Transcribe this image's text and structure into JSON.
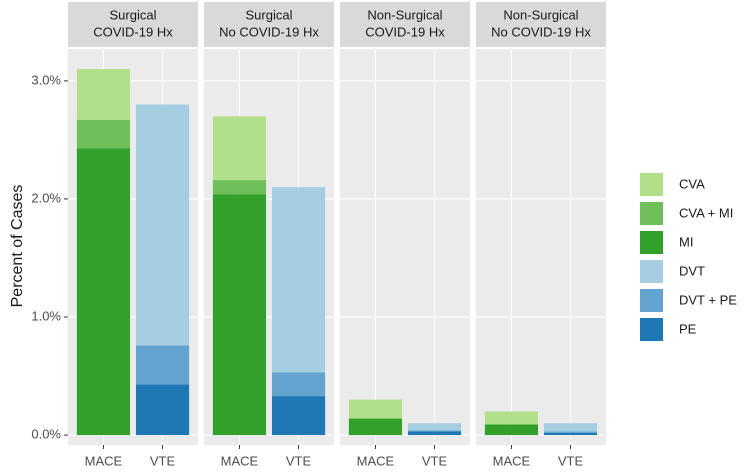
{
  "chart_data": {
    "type": "bar",
    "stacked": true,
    "y_label": "Percent of Cases",
    "facets": [
      {
        "title": [
          "Surgical",
          "COVID-19 Hx"
        ]
      },
      {
        "title": [
          "Surgical",
          "No COVID-19 Hx"
        ]
      },
      {
        "title": [
          "Non-Surgical",
          "COVID-19 Hx"
        ]
      },
      {
        "title": [
          "Non-Surgical",
          "No COVID-19 Hx"
        ]
      }
    ],
    "categories": [
      "MACE",
      "VTE"
    ],
    "series": [
      {
        "name": "CVA",
        "color": "#b2df8a",
        "values": [
          [
            0.43,
            null
          ],
          [
            0.54,
            null
          ],
          [
            0.16,
            null
          ],
          [
            0.11,
            null
          ]
        ]
      },
      {
        "name": "CVA + MI",
        "color": "#6fbf5a",
        "values": [
          [
            0.24,
            null
          ],
          [
            0.12,
            null
          ],
          [
            0.0,
            null
          ],
          [
            0.0,
            null
          ]
        ]
      },
      {
        "name": "MI",
        "color": "#33a02c",
        "values": [
          [
            2.43,
            null
          ],
          [
            2.04,
            null
          ],
          [
            0.14,
            null
          ],
          [
            0.09,
            null
          ]
        ]
      },
      {
        "name": "DVT",
        "color": "#a6cee3",
        "values": [
          [
            null,
            2.04
          ],
          [
            null,
            1.57
          ],
          [
            null,
            0.06
          ],
          [
            null,
            0.07
          ]
        ]
      },
      {
        "name": "DVT + PE",
        "color": "#62a3d0",
        "values": [
          [
            null,
            0.33
          ],
          [
            null,
            0.2
          ],
          [
            null,
            0.01
          ],
          [
            null,
            0.01
          ]
        ]
      },
      {
        "name": "PE",
        "color": "#1f78b4",
        "values": [
          [
            null,
            0.43
          ],
          [
            null,
            0.33
          ],
          [
            null,
            0.03
          ],
          [
            null,
            0.02
          ]
        ]
      }
    ],
    "ylim": [
      -0.084,
      3.27
    ],
    "yticks": [
      {
        "value": 0,
        "label": "0.0%"
      },
      {
        "value": 1,
        "label": "1.0%"
      },
      {
        "value": 2,
        "label": "2.0%"
      },
      {
        "value": 3,
        "label": "3.0%"
      }
    ],
    "grid": true
  }
}
